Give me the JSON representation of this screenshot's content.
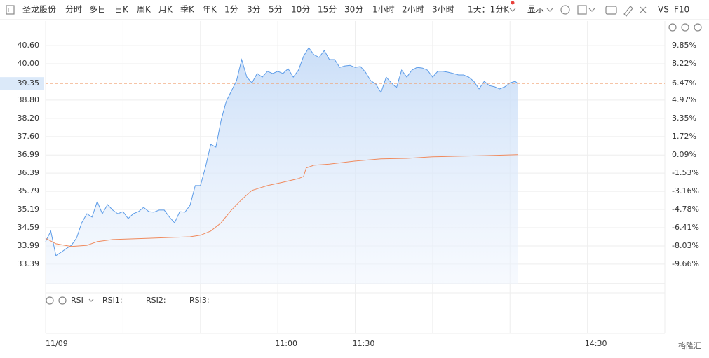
{
  "toolbar": {
    "stock": "圣龙股份",
    "tabs": [
      "分时",
      "多日",
      "日K",
      "周K",
      "月K",
      "季K",
      "年K",
      "1分",
      "3分",
      "5分",
      "10分",
      "15分",
      "30分",
      "1小时",
      "2小时",
      "3小时",
      "1天：1分K"
    ],
    "active_tab": 0,
    "display": "显示",
    "vs": "VS",
    "f10": "F10"
  },
  "chart_data": {
    "type": "line",
    "xlim": [
      0,
      240
    ],
    "xticks": [
      {
        "value": 0,
        "label": "11/09"
      },
      {
        "value": 90,
        "label": "11:00"
      },
      {
        "value": 120,
        "label": "11:30"
      },
      {
        "value": 210,
        "label": "14:30"
      }
    ],
    "xgrid": [
      0,
      30,
      60,
      90,
      120,
      150,
      180,
      210,
      240
    ],
    "ylim": [
      32.74,
      41.18
    ],
    "yticks": [
      {
        "value": 40.6,
        "label": "40.60"
      },
      {
        "value": 40,
        "label": "40.00"
      },
      {
        "value": 38.8,
        "label": "38.80"
      },
      {
        "value": 38.2,
        "label": "38.20"
      },
      {
        "value": 37.6,
        "label": "37.60"
      },
      36.99,
      36.39,
      35.79,
      35.19,
      34.59,
      33.99,
      33.39
    ],
    "y2lim": [
      -11.41,
      11.41
    ],
    "y2ticks": [
      {
        "value": 9.85,
        "label": "9.85%"
      },
      {
        "value": 8.22,
        "label": "8.22%"
      },
      {
        "value": 4.97,
        "label": "4.97%"
      },
      {
        "value": 3.35,
        "label": "3.35%"
      },
      {
        "value": 1.72,
        "label": "1.72%"
      },
      {
        "value": 0.09,
        "label": "0.09%"
      },
      {
        "value": -1.53,
        "label": "-1.53%"
      },
      {
        "value": -3.16,
        "label": "-3.16%"
      },
      {
        "value": -4.78,
        "label": "-4.78%"
      },
      {
        "value": -6.41,
        "label": "-6.41%"
      },
      {
        "value": -8.03,
        "label": "-8.03%"
      },
      {
        "value": -9.66,
        "label": "-9.66%"
      }
    ],
    "grid": true,
    "last_price": {
      "value": 39.35,
      "label": "39.35"
    },
    "last_pct": {
      "value": 6.47,
      "label": "6.47%"
    },
    "last_color": "#f0a070",
    "up_color": "#e8413b",
    "down_color": "#1a9a3a",
    "series": [
      {
        "color": "#5b9be8",
        "fill": true,
        "x": [
          0,
          2,
          4,
          6,
          8,
          10,
          12,
          14,
          16,
          18,
          20,
          22,
          24,
          26,
          28,
          30,
          32,
          34,
          36,
          38,
          40,
          42,
          44,
          46,
          48,
          50,
          52,
          54,
          56,
          58,
          60,
          62,
          64,
          66,
          68,
          70,
          72,
          74,
          76,
          78,
          80,
          82,
          84,
          86,
          88,
          90,
          92,
          94,
          96,
          98,
          100,
          102,
          104,
          106,
          108,
          110,
          112,
          114,
          116,
          118,
          120,
          122,
          124,
          126,
          128,
          130,
          132,
          134,
          136,
          138,
          140,
          142,
          144,
          146,
          148,
          150,
          152,
          154,
          156,
          158,
          160,
          162,
          164,
          166,
          168,
          170,
          172,
          174,
          176,
          178,
          180,
          182,
          183
        ],
        "values": [
          34.13,
          34.48,
          33.67,
          33.78,
          33.9,
          34.01,
          34.25,
          34.75,
          35.05,
          34.94,
          35.45,
          35.05,
          35.35,
          35.17,
          35.05,
          35.12,
          34.89,
          35.05,
          35.12,
          35.26,
          35.12,
          35.1,
          35.17,
          35.17,
          34.94,
          34.75,
          35.12,
          35.1,
          35.33,
          35.98,
          35.98,
          36.6,
          37.34,
          37.25,
          38.13,
          38.75,
          39.1,
          39.44,
          40.14,
          39.56,
          39.37,
          39.68,
          39.56,
          39.75,
          39.68,
          39.75,
          39.68,
          39.84,
          39.56,
          39.79,
          40.25,
          40.53,
          40.3,
          40.21,
          40.44,
          40.14,
          40.14,
          39.88,
          39.93,
          39.95,
          39.88,
          39.91,
          39.72,
          39.44,
          39.33,
          39.05,
          39.56,
          39.37,
          39.21,
          39.79,
          39.56,
          39.79,
          39.88,
          39.86,
          39.79,
          39.56,
          39.75,
          39.75,
          39.72,
          39.68,
          39.63,
          39.63,
          39.56,
          39.42,
          39.17,
          39.42,
          39.28,
          39.24,
          39.17,
          39.24,
          39.37,
          39.42,
          39.35
        ]
      },
      {
        "color": "#f08a5d",
        "fill": false,
        "x": [
          0,
          4,
          10,
          16,
          20,
          26,
          40,
          50,
          56,
          60,
          64,
          68,
          72,
          76,
          80,
          86,
          92,
          98,
          100,
          101,
          104,
          110,
          120,
          130,
          140,
          150,
          160,
          170,
          183
        ],
        "values": [
          34.24,
          34.06,
          33.97,
          34.01,
          34.13,
          34.2,
          34.24,
          34.27,
          34.29,
          34.34,
          34.48,
          34.75,
          35.17,
          35.52,
          35.82,
          35.98,
          36.09,
          36.21,
          36.28,
          36.56,
          36.65,
          36.69,
          36.79,
          36.86,
          36.88,
          36.93,
          36.95,
          36.97,
          37.0
        ]
      }
    ]
  },
  "indicator": {
    "name": "RSI",
    "labels": [
      {
        "text": "RSI1:",
        "color": "#f5c2a8"
      },
      {
        "text": "RSI2:",
        "color": "#b9d8f0"
      },
      {
        "text": "RSI3:",
        "color": "#f3c8e4"
      }
    ]
  },
  "watermark": "格隆汇"
}
